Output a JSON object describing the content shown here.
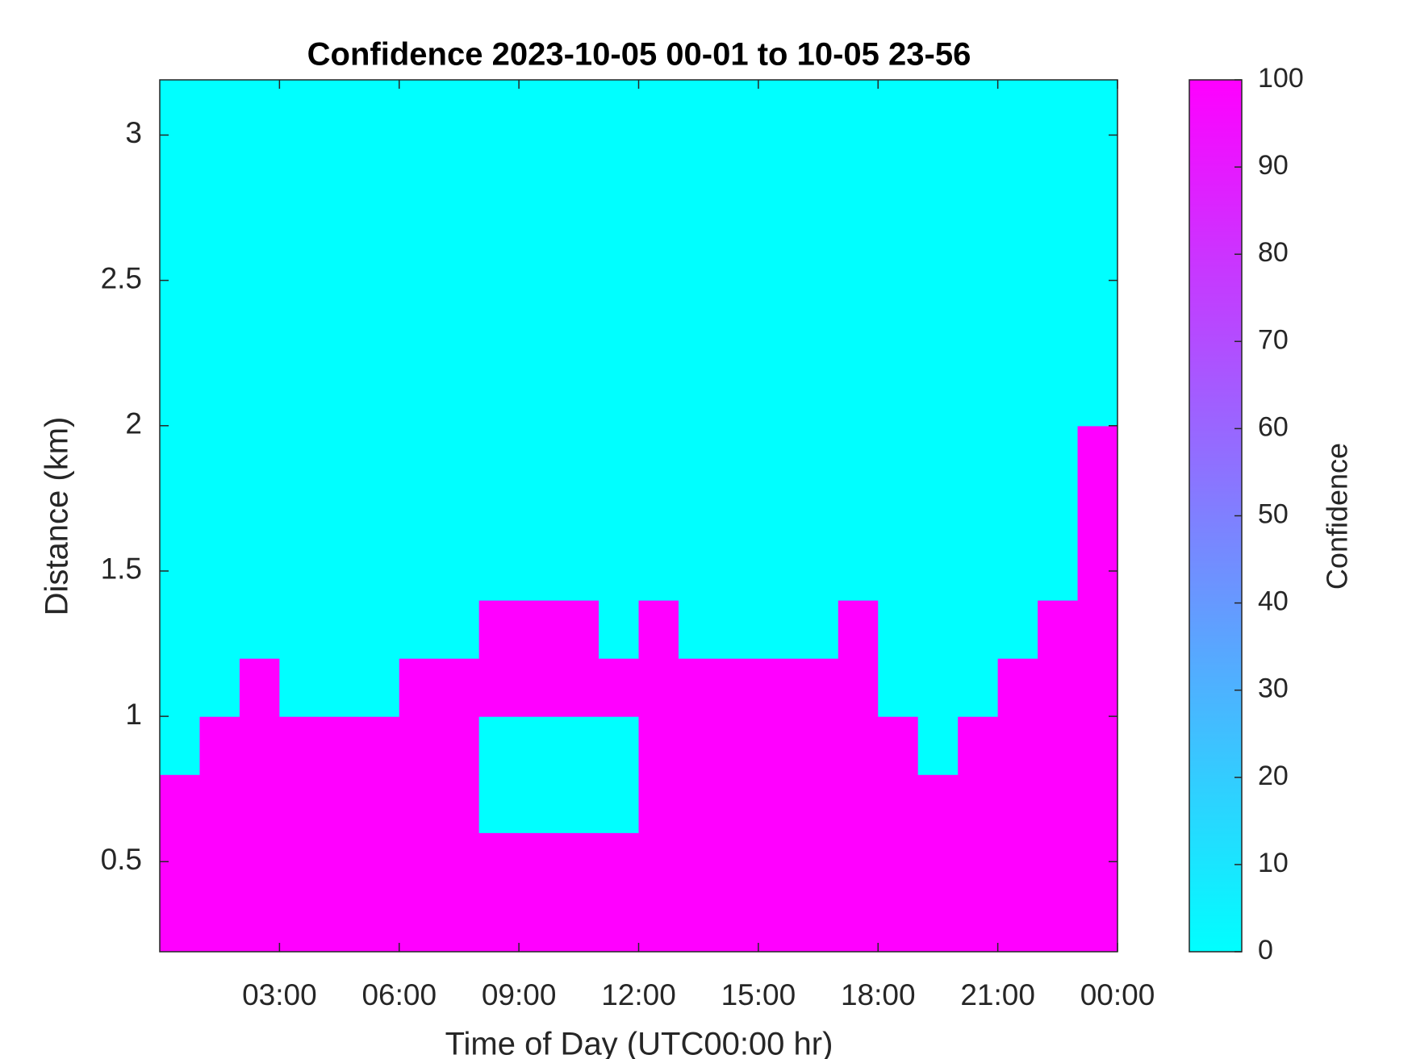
{
  "chart_data": {
    "type": "heatmap",
    "title": "Confidence 2023-10-05 00-01 to 10-05 23-56",
    "xlabel": "Time of Day (UTC00:00 hr)",
    "ylabel": "Distance (km)",
    "colorbar_label": "Confidence",
    "x": [
      0.5,
      1.5,
      2.5,
      3.5,
      4.5,
      5.5,
      6.5,
      7.5,
      8.5,
      9.5,
      10.5,
      11.5,
      12.5,
      13.5,
      14.5,
      15.5,
      16.5,
      17.5,
      18.5,
      19.5,
      20.5,
      21.5,
      22.5,
      23.5
    ],
    "y": [
      0.3,
      0.5,
      0.7,
      0.9,
      1.1,
      1.3,
      1.5,
      1.7,
      1.9,
      2.1,
      2.3,
      2.5,
      2.7,
      2.9,
      3.1
    ],
    "values": [
      [
        100,
        100,
        100,
        100,
        100,
        100,
        100,
        100,
        100,
        100,
        100,
        100,
        100,
        100,
        100,
        100,
        100,
        100,
        100,
        100,
        100,
        100,
        100,
        100
      ],
      [
        100,
        100,
        100,
        100,
        100,
        100,
        100,
        100,
        100,
        100,
        100,
        100,
        100,
        100,
        100,
        100,
        100,
        100,
        100,
        100,
        100,
        100,
        100,
        100
      ],
      [
        100,
        100,
        100,
        100,
        100,
        100,
        100,
        100,
        0,
        0,
        0,
        0,
        100,
        100,
        100,
        100,
        100,
        100,
        100,
        100,
        100,
        100,
        100,
        100
      ],
      [
        0,
        100,
        100,
        100,
        100,
        100,
        100,
        100,
        0,
        0,
        0,
        0,
        100,
        100,
        100,
        100,
        100,
        100,
        100,
        0,
        100,
        100,
        100,
        100
      ],
      [
        0,
        0,
        100,
        0,
        0,
        0,
        100,
        100,
        100,
        100,
        100,
        100,
        100,
        100,
        100,
        100,
        100,
        100,
        0,
        0,
        0,
        100,
        100,
        100
      ],
      [
        0,
        0,
        0,
        0,
        0,
        0,
        0,
        0,
        100,
        100,
        100,
        0,
        100,
        0,
        0,
        0,
        0,
        100,
        0,
        0,
        0,
        0,
        100,
        100
      ],
      [
        0,
        0,
        0,
        0,
        0,
        0,
        0,
        0,
        0,
        0,
        0,
        0,
        0,
        0,
        0,
        0,
        0,
        0,
        0,
        0,
        0,
        0,
        0,
        100
      ],
      [
        0,
        0,
        0,
        0,
        0,
        0,
        0,
        0,
        0,
        0,
        0,
        0,
        0,
        0,
        0,
        0,
        0,
        0,
        0,
        0,
        0,
        0,
        0,
        100
      ],
      [
        0,
        0,
        0,
        0,
        0,
        0,
        0,
        0,
        0,
        0,
        0,
        0,
        0,
        0,
        0,
        0,
        0,
        0,
        0,
        0,
        0,
        0,
        0,
        100
      ],
      [
        0,
        0,
        0,
        0,
        0,
        0,
        0,
        0,
        0,
        0,
        0,
        0,
        0,
        0,
        0,
        0,
        0,
        0,
        0,
        0,
        0,
        0,
        0,
        0
      ],
      [
        0,
        0,
        0,
        0,
        0,
        0,
        0,
        0,
        0,
        0,
        0,
        0,
        0,
        0,
        0,
        0,
        0,
        0,
        0,
        0,
        0,
        0,
        0,
        0
      ],
      [
        0,
        0,
        0,
        0,
        0,
        0,
        0,
        0,
        0,
        0,
        0,
        0,
        0,
        0,
        0,
        0,
        0,
        0,
        0,
        0,
        0,
        0,
        0,
        0
      ],
      [
        0,
        0,
        0,
        0,
        0,
        0,
        0,
        0,
        0,
        0,
        0,
        0,
        0,
        0,
        0,
        0,
        0,
        0,
        0,
        0,
        0,
        0,
        0,
        0
      ],
      [
        0,
        0,
        0,
        0,
        0,
        0,
        0,
        0,
        0,
        0,
        0,
        0,
        0,
        0,
        0,
        0,
        0,
        0,
        0,
        0,
        0,
        0,
        0,
        0
      ],
      [
        0,
        0,
        0,
        0,
        0,
        0,
        0,
        0,
        0,
        0,
        0,
        0,
        0,
        0,
        0,
        0,
        0,
        0,
        0,
        0,
        0,
        0,
        0,
        0
      ]
    ],
    "xlim": [
      0,
      24
    ],
    "xticks": [
      {
        "value": 3,
        "label": "03:00"
      },
      {
        "value": 6,
        "label": "06:00"
      },
      {
        "value": 9,
        "label": "09:00"
      },
      {
        "value": 12,
        "label": "12:00"
      },
      {
        "value": 15,
        "label": "15:00"
      },
      {
        "value": 18,
        "label": "18:00"
      },
      {
        "value": 21,
        "label": "21:00"
      },
      {
        "value": 24,
        "label": "00:00"
      }
    ],
    "ylim": [
      0.19,
      3.19
    ],
    "yticks": [
      0.5,
      1,
      1.5,
      2,
      2.5,
      3
    ],
    "clim": [
      0,
      100
    ],
    "cticks": [
      0,
      10,
      20,
      30,
      40,
      50,
      60,
      70,
      80,
      90,
      100
    ],
    "colormap": [
      "#00ffff",
      "#ff00ff"
    ]
  }
}
